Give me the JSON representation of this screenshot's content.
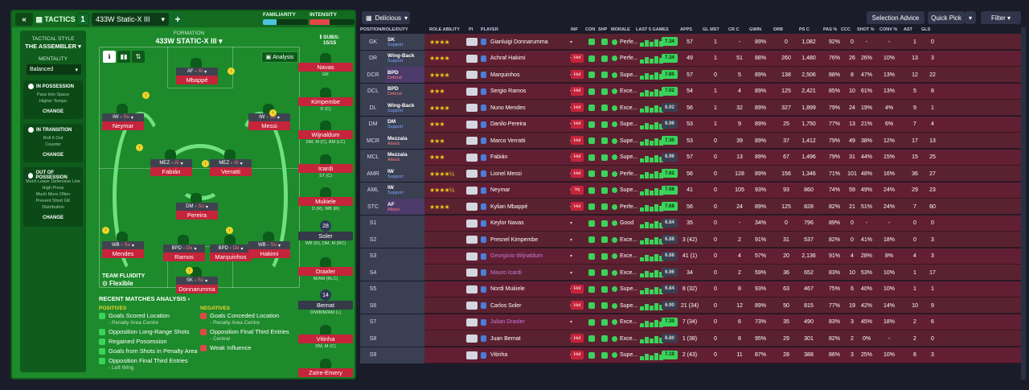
{
  "tactics": {
    "tab_label": "TACTICS",
    "slot_number": "1",
    "tactic_name": "433W Static-X III",
    "familiarity_label": "FAMILIARITY",
    "intensity_label": "INTENSITY",
    "familiarity_value": 0.3,
    "intensity_value": 0.45,
    "colors": {
      "familiarity": "#4ec3e0",
      "intensity": "#e04848"
    }
  },
  "sidebar": {
    "style_heading": "TACTICAL STYLE",
    "style_value": "THE ASSEMBLER",
    "mentality_heading": "MENTALITY",
    "mentality_value": "Balanced",
    "in_possession": {
      "title": "IN POSSESSION",
      "lines": [
        "Pass Into Space",
        "Higher Tempo"
      ],
      "change": "CHANGE"
    },
    "in_transition": {
      "title": "IN TRANSITION",
      "lines": [
        "Roll It Out",
        "Counter"
      ],
      "change": "CHANGE"
    },
    "out_of_possession": {
      "title": "OUT OF POSSESSION",
      "lines": [
        "Much Lower Defensive Line",
        "High Press",
        "Much More Often",
        "Prevent Short GK",
        "Distribution"
      ],
      "change": "CHANGE"
    }
  },
  "formation": {
    "label": "FORMATION",
    "name": "433W STATIC-X III",
    "analysis": "Analysis",
    "subs_label": "SUBS:",
    "subs_count": "15/15",
    "team_fluidity": "TEAM FLUIDITY",
    "fluidity_value": "Flexible"
  },
  "pitch_players": [
    {
      "role": "AF",
      "duty": "At",
      "name": "Mbappé"
    },
    {
      "role": "IW",
      "duty": "Su",
      "name": "Neymar"
    },
    {
      "role": "IW",
      "duty": "Su",
      "name": "Messi"
    },
    {
      "role": "MEZ",
      "duty": "At",
      "name": "Fabián"
    },
    {
      "role": "MEZ",
      "duty": "At",
      "name": "Verratti"
    },
    {
      "role": "DM",
      "duty": "Su",
      "name": "Pereira"
    },
    {
      "role": "WB",
      "duty": "Su",
      "name": "Mendes"
    },
    {
      "role": "BPD",
      "duty": "De",
      "name": "Ramos"
    },
    {
      "role": "BPD",
      "duty": "De",
      "name": "Marquinhos"
    },
    {
      "role": "WB",
      "duty": "Su",
      "name": "Hakimi"
    },
    {
      "role": "SK",
      "duty": "Su",
      "name": "Donnarumma"
    }
  ],
  "subs": [
    {
      "name": "Navas",
      "pos": "GK"
    },
    {
      "name": "Kimpembe",
      "pos": "D (C)"
    },
    {
      "name": "Wijnaldum",
      "pos": "DM, M (C), AM (LC)"
    },
    {
      "name": "Icardi",
      "pos": "ST (C)"
    },
    {
      "name": "Mukiele",
      "pos": "D (R), WB (R)"
    },
    {
      "name": "Soler",
      "pos": "WB (R), DM, M (RC)",
      "num": "28"
    },
    {
      "name": "Draxler",
      "pos": "M/AM (RLC)"
    },
    {
      "name": "Bernat",
      "pos": "D/WB/M/AM (L)",
      "num": "14"
    },
    {
      "name": "Vitinha",
      "pos": "DM, M (C)"
    },
    {
      "name": "Zaïre-Emery",
      "pos": ""
    }
  ],
  "analysis": {
    "title": "RECENT MATCHES ANALYSIS",
    "positives_heading": "POSITIVES",
    "negatives_heading": "NEGATIVES",
    "positives": [
      {
        "text": "Goals Scored Location",
        "sub": "- Penalty Area Centre"
      },
      {
        "text": "Opposition Long-Range Shots",
        "sub": ""
      },
      {
        "text": "Regained Possession",
        "sub": ""
      },
      {
        "text": "Goals from Shots in Penalty Area",
        "sub": ""
      },
      {
        "text": "Opposition Final Third Entries",
        "sub": "- Left Wing"
      }
    ],
    "negatives": [
      {
        "text": "Goals Conceded Location",
        "sub": "- Penalty Area Centre"
      },
      {
        "text": "Opposition Final Third Entries",
        "sub": "- Central"
      },
      {
        "text": "Weak Influence",
        "sub": ""
      }
    ]
  },
  "toolbar": {
    "view": "Delicious",
    "selection_advice": "Selection Advice",
    "quick_pick": "Quick Pick",
    "filter": "Filter"
  },
  "columns": [
    "POSITION/ROLE/DUTY",
    "ROLE ABILITY",
    "PI",
    "PLAYER",
    "INF",
    "CON",
    "SHP",
    "MORALE",
    "LAST 5 GAMES",
    "APPS",
    "GL MST",
    "CR C",
    "GWIN",
    "DRB",
    "PS C",
    "PAS %",
    "CCC",
    "SHOT %",
    "CONV %",
    "AST",
    "GLS"
  ],
  "rows": [
    {
      "pos": "GK",
      "role": "SK",
      "duty": "Support",
      "stars": "★★★★",
      "player": "Gianluigi Donnarumma",
      "inf": "",
      "morale": "Perfe...",
      "rating": "7.34",
      "apps": "57",
      "glmst": "1",
      "crc": "-",
      "gwin": "89%",
      "drb": "0",
      "psc": "1,082",
      "pas": "92%",
      "ccc": "0",
      "shot": "-",
      "conv": "-",
      "ast": "1",
      "gls": "0"
    },
    {
      "pos": "DR",
      "role": "Wing-Back",
      "duty": "Support",
      "stars": "★★★★",
      "player": "Achraf Hakimi",
      "inf": "Hol",
      "morale": "Perfe...",
      "rating": "7.34",
      "apps": "49",
      "glmst": "1",
      "crc": "51",
      "gwin": "88%",
      "drb": "260",
      "psc": "1,480",
      "pas": "76%",
      "ccc": "26",
      "shot": "26%",
      "conv": "10%",
      "ast": "13",
      "gls": "3"
    },
    {
      "pos": "DCR",
      "role": "BPD",
      "duty": "Defend",
      "stars": "★★★★",
      "player": "Marquinhos",
      "inf": "Hol",
      "morale": "Supe...",
      "rating": "7.80",
      "apps": "57",
      "glmst": "0",
      "crc": "5",
      "gwin": "89%",
      "drb": "138",
      "psc": "2,506",
      "pas": "88%",
      "ccc": "8",
      "shot": "47%",
      "conv": "13%",
      "ast": "12",
      "gls": "22"
    },
    {
      "pos": "DCL",
      "role": "BPD",
      "duty": "Defend",
      "stars": "★★★",
      "player": "Sergio Ramos",
      "inf": "Hol",
      "morale": "Exce...",
      "rating": "7.02",
      "apps": "54",
      "glmst": "1",
      "crc": "4",
      "gwin": "89%",
      "drb": "125",
      "psc": "2,421",
      "pas": "85%",
      "ccc": "10",
      "shot": "61%",
      "conv": "13%",
      "ast": "5",
      "gls": "8"
    },
    {
      "pos": "DL",
      "role": "Wing-Back",
      "duty": "Support",
      "stars": "★★★★",
      "player": "Nuno Mendes",
      "inf": "Hol",
      "morale": "Exce...",
      "rating": "6.92",
      "apps": "56",
      "glmst": "1",
      "crc": "32",
      "gwin": "89%",
      "drb": "327",
      "psc": "1,899",
      "pas": "79%",
      "ccc": "24",
      "shot": "19%",
      "conv": "4%",
      "ast": "9",
      "gls": "1"
    },
    {
      "pos": "DM",
      "role": "DM",
      "duty": "Support",
      "stars": "★★★",
      "player": "Danilo Pereira",
      "inf": "Hol",
      "morale": "Supe...",
      "rating": "6.96",
      "apps": "53",
      "glmst": "1",
      "crc": "9",
      "gwin": "89%",
      "drb": "25",
      "psc": "1,750",
      "pas": "77%",
      "ccc": "13",
      "shot": "21%",
      "conv": "6%",
      "ast": "7",
      "gls": "4"
    },
    {
      "pos": "MCR",
      "role": "Mezzala",
      "duty": "Attack",
      "stars": "★★★",
      "player": "Marco Verratti",
      "inf": "Hol",
      "morale": "Supe...",
      "rating": "7.30",
      "apps": "53",
      "glmst": "0",
      "crc": "39",
      "gwin": "89%",
      "drb": "37",
      "psc": "1,412",
      "pas": "79%",
      "ccc": "49",
      "shot": "38%",
      "conv": "12%",
      "ast": "17",
      "gls": "13"
    },
    {
      "pos": "MCL",
      "role": "Mezzala",
      "duty": "Attack",
      "stars": "★★★",
      "player": "Fabián",
      "inf": "Hol",
      "morale": "Supe...",
      "rating": "6.96",
      "apps": "57",
      "glmst": "0",
      "crc": "13",
      "gwin": "89%",
      "drb": "67",
      "psc": "1,496",
      "pas": "79%",
      "ccc": "31",
      "shot": "44%",
      "conv": "15%",
      "ast": "15",
      "gls": "25"
    },
    {
      "pos": "AMR",
      "role": "IW",
      "duty": "Support",
      "stars": "★★★★½",
      "player": "Lionel Messi",
      "inf": "Hol",
      "morale": "Perfe...",
      "rating": "7.62",
      "apps": "56",
      "glmst": "0",
      "crc": "128",
      "gwin": "89%",
      "drb": "156",
      "psc": "1,346",
      "pas": "71%",
      "ccc": "101",
      "shot": "48%",
      "conv": "16%",
      "ast": "36",
      "gls": "27"
    },
    {
      "pos": "AML",
      "role": "IW",
      "duty": "Support",
      "stars": "★★★★½",
      "player": "Neymar",
      "inf": "Inj",
      "morale": "Supe...",
      "rating": "7.08",
      "apps": "41",
      "glmst": "0",
      "crc": "105",
      "gwin": "93%",
      "drb": "93",
      "psc": "860",
      "pas": "74%",
      "ccc": "59",
      "shot": "49%",
      "conv": "24%",
      "ast": "29",
      "gls": "23"
    },
    {
      "pos": "STC",
      "role": "AF",
      "duty": "Attack",
      "stars": "★★★★",
      "player": "Kylian Mbappé",
      "inf": "Hol",
      "morale": "Perfe...",
      "rating": "7.68",
      "apps": "56",
      "glmst": "0",
      "crc": "24",
      "gwin": "89%",
      "drb": "125",
      "psc": "828",
      "pas": "82%",
      "ccc": "21",
      "shot": "51%",
      "conv": "24%",
      "ast": "7",
      "gls": "60"
    },
    {
      "pos": "S1",
      "role": "",
      "duty": "",
      "stars": "",
      "player": "Keylor Navas",
      "inf": "",
      "morale": "Good",
      "rating": "6.84",
      "apps": "35",
      "glmst": "0",
      "crc": "-",
      "gwin": "34%",
      "drb": "0",
      "psc": "796",
      "pas": "89%",
      "ccc": "0",
      "shot": "-",
      "conv": "-",
      "ast": "0",
      "gls": "0"
    },
    {
      "pos": "S2",
      "role": "",
      "duty": "",
      "stars": "",
      "player": "Presnel Kimpembe",
      "inf": "",
      "morale": "Exce...",
      "rating": "6.88",
      "apps": "3 (42)",
      "glmst": "0",
      "crc": "2",
      "gwin": "91%",
      "drb": "31",
      "psc": "537",
      "pas": "82%",
      "ccc": "0",
      "shot": "41%",
      "conv": "18%",
      "ast": "0",
      "gls": "3"
    },
    {
      "pos": "S3",
      "role": "",
      "duty": "",
      "stars": "",
      "player": "Georginio Wijnaldum",
      "inf": "",
      "morale": "Exce...",
      "rating": "6.88",
      "apps": "41 (1)",
      "glmst": "0",
      "crc": "4",
      "gwin": "57%",
      "drb": "20",
      "psc": "2,136",
      "pas": "91%",
      "ccc": "4",
      "shot": "28%",
      "conv": "8%",
      "ast": "4",
      "gls": "3"
    },
    {
      "pos": "S4",
      "role": "",
      "duty": "",
      "stars": "",
      "player": "Mauro Icardi",
      "inf": "",
      "morale": "Exce...",
      "rating": "6.96",
      "apps": "34",
      "glmst": "0",
      "crc": "2",
      "gwin": "59%",
      "drb": "36",
      "psc": "652",
      "pas": "83%",
      "ccc": "10",
      "shot": "53%",
      "conv": "10%",
      "ast": "1",
      "gls": "17"
    },
    {
      "pos": "S5",
      "role": "",
      "duty": "",
      "stars": "",
      "player": "Nordi Mukiele",
      "inf": "Hol",
      "morale": "Supe...",
      "rating": "6.84",
      "apps": "8 (32)",
      "glmst": "0",
      "crc": "8",
      "gwin": "93%",
      "drb": "63",
      "psc": "467",
      "pas": "75%",
      "ccc": "6",
      "shot": "40%",
      "conv": "10%",
      "ast": "1",
      "gls": "1"
    },
    {
      "pos": "S6",
      "role": "",
      "duty": "",
      "stars": "",
      "player": "Carlos Soler",
      "inf": "Hol",
      "morale": "Supe...",
      "rating": "6.90",
      "apps": "21 (34)",
      "glmst": "0",
      "crc": "12",
      "gwin": "89%",
      "drb": "50",
      "psc": "815",
      "pas": "77%",
      "ccc": "19",
      "shot": "42%",
      "conv": "14%",
      "ast": "10",
      "gls": "9"
    },
    {
      "pos": "S7",
      "role": "",
      "duty": "",
      "stars": "",
      "player": "Julian Draxler",
      "inf": "",
      "morale": "Exce...",
      "rating": "7.30",
      "apps": "7 (34)",
      "glmst": "0",
      "crc": "6",
      "gwin": "73%",
      "drb": "35",
      "psc": "490",
      "pas": "83%",
      "ccc": "3",
      "shot": "45%",
      "conv": "18%",
      "ast": "2",
      "gls": "6"
    },
    {
      "pos": "S8",
      "role": "",
      "duty": "",
      "stars": "",
      "player": "Juan Bernat",
      "inf": "Hol",
      "morale": "Exce...",
      "rating": "6.80",
      "apps": "1 (38)",
      "glmst": "0",
      "crc": "8",
      "gwin": "95%",
      "drb": "29",
      "psc": "301",
      "pas": "82%",
      "ccc": "2",
      "shot": "0%",
      "conv": "-",
      "ast": "2",
      "gls": "0"
    },
    {
      "pos": "S9",
      "role": "",
      "duty": "",
      "stars": "",
      "player": "Vitinha",
      "inf": "Hol",
      "morale": "Supe...",
      "rating": "7.10",
      "apps": "2 (43)",
      "glmst": "0",
      "crc": "11",
      "gwin": "87%",
      "drb": "28",
      "psc": "388",
      "pas": "86%",
      "ccc": "3",
      "shot": "25%",
      "conv": "10%",
      "ast": "8",
      "gls": "3"
    }
  ]
}
